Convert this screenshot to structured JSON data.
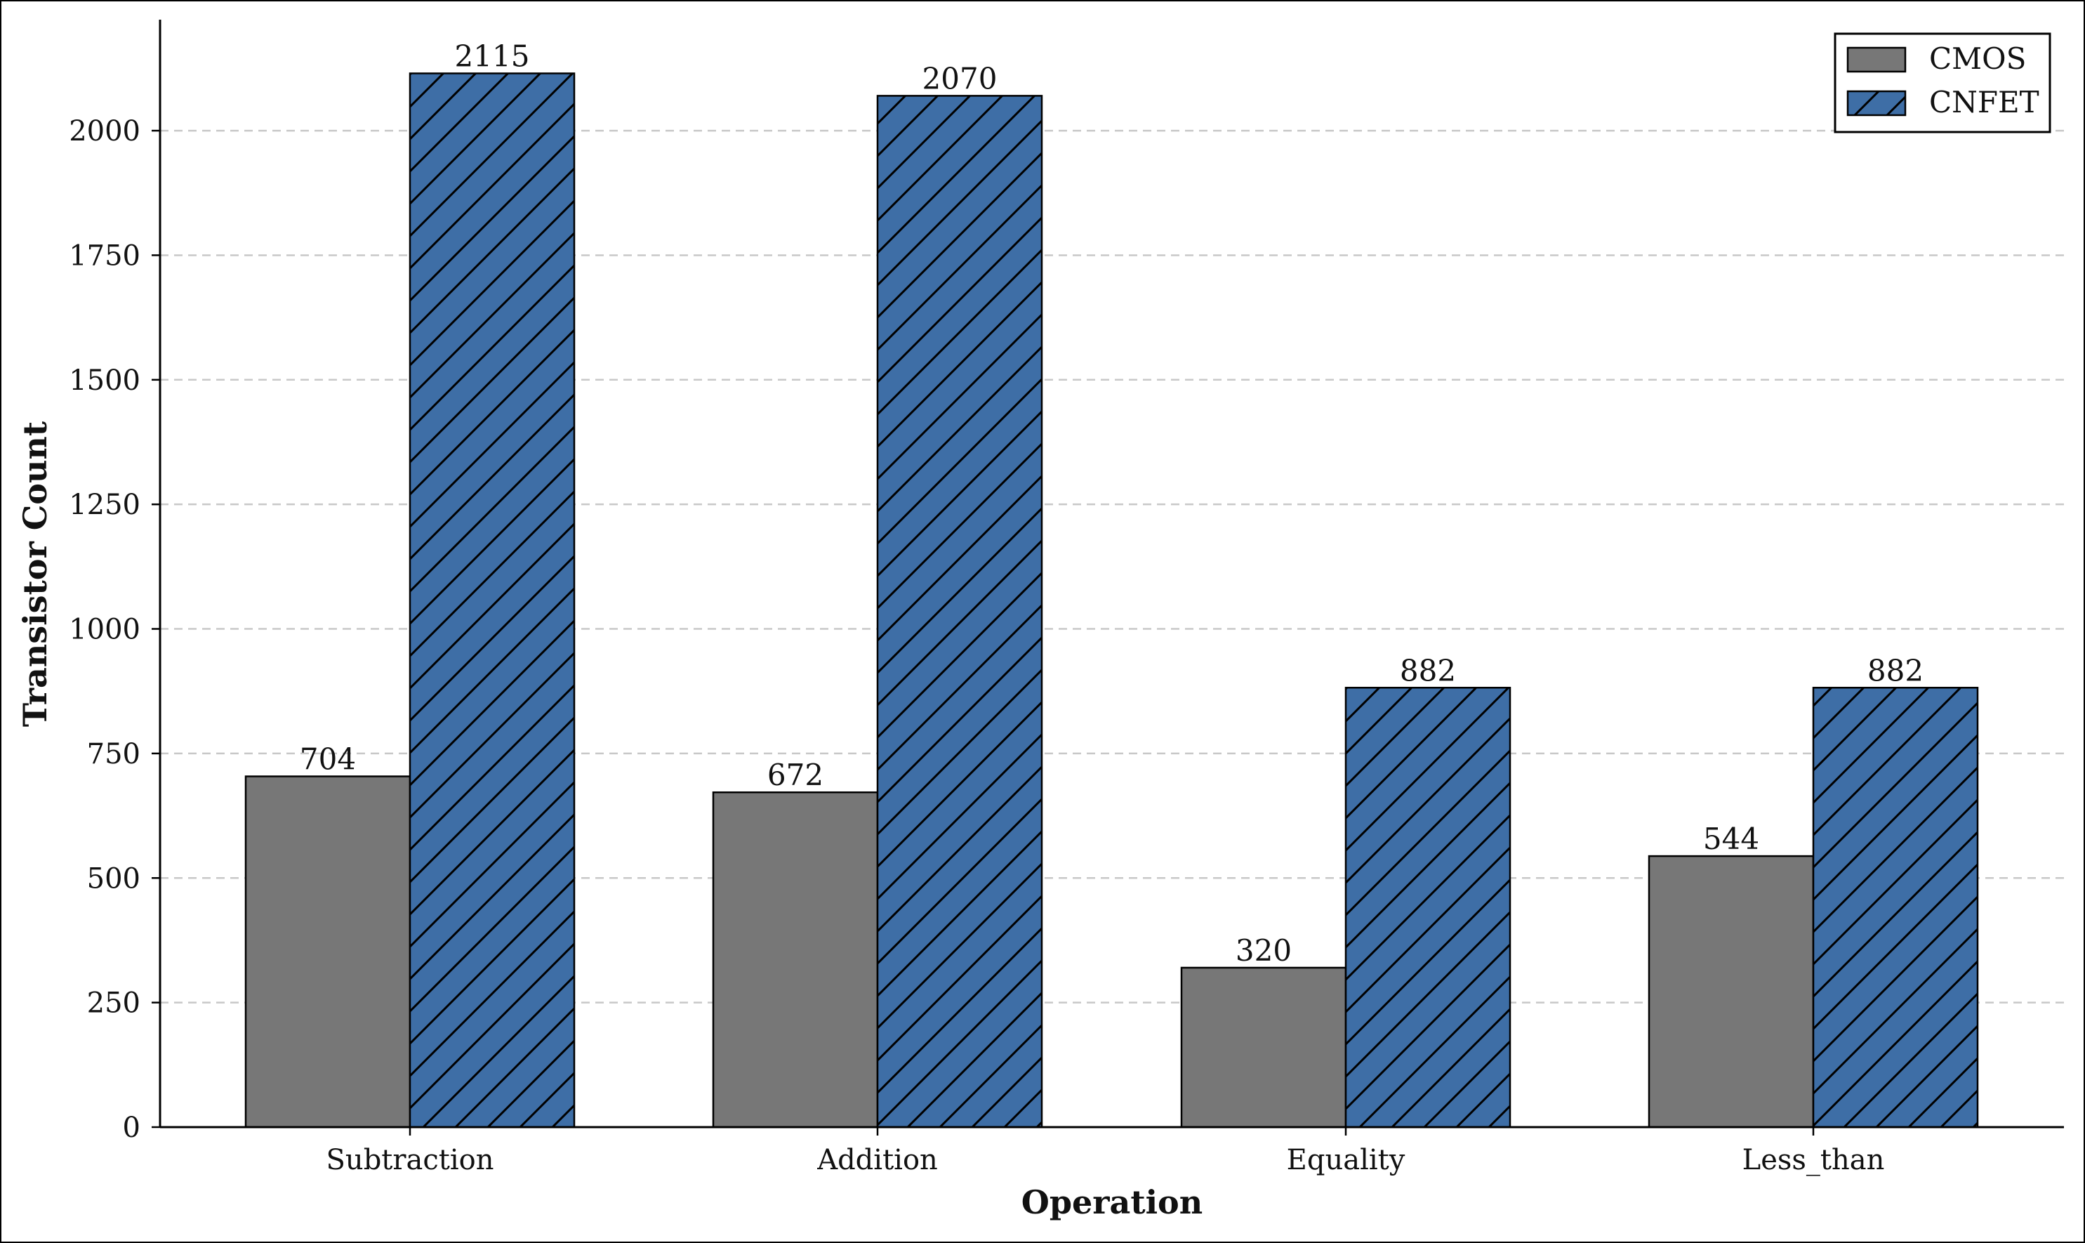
{
  "chart_data": {
    "type": "bar",
    "title": "",
    "xlabel": "Operation",
    "ylabel": "Transistor Count",
    "categories": [
      "Subtraction",
      "Addition",
      "Equality",
      "Less_than"
    ],
    "series": [
      {
        "name": "CMOS",
        "values": [
          704,
          672,
          320,
          544
        ],
        "color": "#777777",
        "hatch": "none"
      },
      {
        "name": "CNFET",
        "values": [
          2115,
          2070,
          882,
          882
        ],
        "color": "#3e6ea6",
        "hatch": "diagonal"
      }
    ],
    "ylim": [
      0,
      2220
    ],
    "yticks": [
      0,
      250,
      500,
      750,
      1000,
      1250,
      1500,
      1750,
      2000
    ],
    "grid": "horizontal-dashed",
    "legend_position": "top-right",
    "data_labels": true
  }
}
